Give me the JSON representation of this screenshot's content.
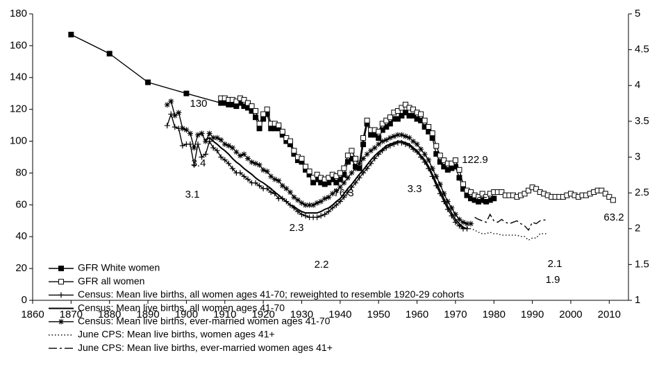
{
  "chart_data": {
    "type": "line",
    "xlim": [
      1860,
      2015
    ],
    "xticks": [
      1860,
      1870,
      1880,
      1890,
      1900,
      1910,
      1920,
      1930,
      1940,
      1950,
      1960,
      1970,
      1980,
      1990,
      2000,
      2010
    ],
    "ylim": [
      0,
      180
    ],
    "yticks": [
      0,
      20,
      40,
      60,
      80,
      100,
      120,
      140,
      160,
      180
    ],
    "y2lim": [
      1,
      5
    ],
    "y2ticks": [
      1,
      1.5,
      2,
      2.5,
      3,
      3.5,
      4,
      4.5,
      5
    ],
    "legend": "lower left",
    "annotations": [
      "130",
      "3.4",
      "3.1",
      "76.3",
      "2.3",
      "2.2",
      "122.9",
      "3.3",
      "65",
      "63.2",
      "2.1",
      "1.9"
    ],
    "series": [
      {
        "name": "GFR White women",
        "color": "#000000",
        "marker": "square-filled",
        "dash": "solid",
        "x": [
          1870,
          1880,
          1890,
          1900,
          1909,
          1910,
          1911,
          1912,
          1913,
          1914,
          1915,
          1916,
          1917,
          1918,
          1919,
          1920,
          1921,
          1922,
          1923,
          1924,
          1925,
          1926,
          1927,
          1928,
          1929,
          1930,
          1931,
          1932,
          1933,
          1934,
          1935,
          1936,
          1937,
          1938,
          1939,
          1940,
          1941,
          1942,
          1943,
          1944,
          1945,
          1946,
          1947,
          1948,
          1949,
          1950,
          1951,
          1952,
          1953,
          1954,
          1955,
          1956,
          1957,
          1958,
          1959,
          1960,
          1961,
          1962,
          1963,
          1964,
          1965,
          1966,
          1967,
          1968,
          1969,
          1970,
          1971,
          1972,
          1973,
          1974,
          1975,
          1976,
          1977,
          1978,
          1979,
          1980
        ],
        "values": [
          167,
          155,
          137,
          130,
          124,
          124,
          123,
          123,
          122,
          124,
          122,
          121,
          119,
          115,
          108,
          114,
          117,
          108,
          108,
          108,
          104,
          100,
          98,
          92,
          88,
          87,
          82,
          79,
          74,
          76,
          74,
          73,
          74,
          76,
          74,
          76,
          79,
          87,
          89,
          84,
          83,
          98,
          111,
          104,
          104,
          102,
          107,
          109,
          111,
          114,
          114,
          116,
          118,
          116,
          116,
          114,
          113,
          109,
          106,
          102,
          92,
          87,
          84,
          82,
          83,
          84,
          77,
          70,
          66,
          64,
          63,
          62,
          63,
          62,
          63,
          64
        ]
      },
      {
        "name": "GFR all women",
        "color": "#000000",
        "marker": "square-open",
        "dash": "solid",
        "x": [
          1909,
          1910,
          1911,
          1912,
          1913,
          1914,
          1915,
          1916,
          1917,
          1918,
          1919,
          1920,
          1921,
          1922,
          1923,
          1924,
          1925,
          1926,
          1927,
          1928,
          1929,
          1930,
          1931,
          1932,
          1933,
          1934,
          1935,
          1936,
          1937,
          1938,
          1939,
          1940,
          1941,
          1942,
          1943,
          1944,
          1945,
          1946,
          1947,
          1948,
          1949,
          1950,
          1951,
          1952,
          1953,
          1954,
          1955,
          1956,
          1957,
          1958,
          1959,
          1960,
          1961,
          1962,
          1963,
          1964,
          1965,
          1966,
          1967,
          1968,
          1969,
          1970,
          1971,
          1972,
          1973,
          1974,
          1975,
          1976,
          1977,
          1978,
          1979,
          1980,
          1981,
          1982,
          1983,
          1984,
          1985,
          1986,
          1987,
          1988,
          1989,
          1990,
          1991,
          1992,
          1993,
          1994,
          1995,
          1996,
          1997,
          1998,
          1999,
          2000,
          2001,
          2002,
          2003,
          2004,
          2005,
          2006,
          2007,
          2008,
          2009,
          2010,
          2011
        ],
        "values": [
          127,
          127,
          126,
          126,
          125,
          127,
          126,
          124,
          122,
          119,
          111,
          117,
          120,
          111,
          111,
          110,
          106,
          102,
          100,
          94,
          90,
          89,
          84,
          81,
          77,
          79,
          77,
          76,
          77,
          79,
          78,
          80,
          83,
          91,
          94,
          89,
          86,
          102,
          113,
          107,
          107,
          106,
          111,
          113,
          115,
          118,
          119,
          121,
          123,
          121,
          120,
          118,
          117,
          113,
          109,
          105,
          97,
          91,
          88,
          86,
          86,
          88,
          82,
          73,
          69,
          68,
          66,
          65,
          67,
          65,
          67,
          68,
          68,
          68,
          66,
          66,
          66,
          65,
          66,
          67,
          69,
          71,
          70,
          68,
          67,
          66,
          65,
          65,
          65,
          65,
          66,
          67,
          66,
          65,
          66,
          66,
          67,
          68,
          69,
          69,
          67,
          65,
          63
        ]
      },
      {
        "name": "Census: Mean live births, all women ages 41-70; reweighted to resemble 1920-29 cohorts",
        "color": "#000000",
        "marker": "plus",
        "dash": "solid",
        "axis": "y2",
        "x": [
          1895,
          1896,
          1897,
          1898,
          1899,
          1900,
          1901,
          1902,
          1903,
          1904,
          1905,
          1906,
          1907,
          1908,
          1909,
          1910,
          1911,
          1912,
          1913,
          1914,
          1915,
          1916,
          1917,
          1918,
          1919,
          1920,
          1921,
          1922,
          1923,
          1924,
          1925,
          1926,
          1927,
          1928,
          1929,
          1930,
          1931,
          1932,
          1933,
          1934,
          1935,
          1936,
          1937,
          1938,
          1939,
          1940,
          1941,
          1942,
          1943,
          1944,
          1945,
          1946,
          1947,
          1948,
          1949,
          1950,
          1951,
          1952,
          1953,
          1954,
          1955,
          1956,
          1957,
          1958,
          1959,
          1960,
          1961,
          1962,
          1963,
          1964,
          1965,
          1966,
          1967,
          1968,
          1969,
          1970,
          1971,
          1972,
          1973
        ],
        "values": [
          3.44,
          3.6,
          3.42,
          3.4,
          3.16,
          3.18,
          3.18,
          2.89,
          3.18,
          3,
          3.04,
          3.22,
          3.13,
          3.09,
          3,
          2.96,
          2.91,
          2.84,
          2.78,
          2.78,
          2.73,
          2.69,
          2.64,
          2.64,
          2.6,
          2.56,
          2.56,
          2.51,
          2.49,
          2.42,
          2.42,
          2.38,
          2.33,
          2.29,
          2.24,
          2.2,
          2.18,
          2.16,
          2.16,
          2.16,
          2.18,
          2.2,
          2.24,
          2.29,
          2.33,
          2.38,
          2.44,
          2.51,
          2.58,
          2.64,
          2.71,
          2.78,
          2.84,
          2.91,
          2.98,
          3.04,
          3.09,
          3.13,
          3.16,
          3.18,
          3.2,
          3.2,
          3.18,
          3.16,
          3.11,
          3.07,
          3,
          2.93,
          2.84,
          2.73,
          2.6,
          2.49,
          2.38,
          2.27,
          2.18,
          2.09,
          2.04,
          2,
          2
        ]
      },
      {
        "name": "Census: Mean live births, all women ages 41-70",
        "color": "#000000",
        "marker": "none",
        "dash": "solid",
        "axis": "y2",
        "x": [
          1905,
          1906,
          1907,
          1908,
          1909,
          1910,
          1911,
          1912,
          1913,
          1914,
          1915,
          1916,
          1917,
          1918,
          1919,
          1920,
          1921,
          1922,
          1923,
          1924,
          1925,
          1926,
          1927,
          1928,
          1929,
          1930,
          1931,
          1932,
          1933,
          1934,
          1935,
          1936,
          1937,
          1938,
          1939,
          1940,
          1941,
          1942,
          1943,
          1944,
          1945,
          1946,
          1947,
          1948,
          1949,
          1950,
          1951,
          1952,
          1953,
          1954,
          1955,
          1956,
          1957,
          1958,
          1959,
          1960,
          1961,
          1962,
          1963,
          1964,
          1965,
          1966,
          1967,
          1968,
          1969,
          1970,
          1971,
          1972,
          1973
        ],
        "values": [
          3.24,
          3.27,
          3.22,
          3.18,
          3.13,
          3.09,
          3.04,
          2.98,
          2.93,
          2.89,
          2.84,
          2.8,
          2.76,
          2.71,
          2.67,
          2.64,
          2.6,
          2.56,
          2.51,
          2.47,
          2.42,
          2.38,
          2.33,
          2.31,
          2.27,
          2.24,
          2.22,
          2.22,
          2.22,
          2.22,
          2.24,
          2.27,
          2.29,
          2.33,
          2.38,
          2.42,
          2.49,
          2.56,
          2.62,
          2.69,
          2.76,
          2.82,
          2.89,
          2.96,
          3.02,
          3.07,
          3.11,
          3.16,
          3.18,
          3.2,
          3.22,
          3.22,
          3.2,
          3.18,
          3.13,
          3.09,
          3.02,
          2.96,
          2.87,
          2.76,
          2.64,
          2.53,
          2.42,
          2.31,
          2.22,
          2.13,
          2.07,
          2.02,
          2
        ]
      },
      {
        "name": "Census: Mean live births, ever-married women ages 41-70",
        "color": "#000000",
        "marker": "star",
        "dash": "solid",
        "axis": "y2",
        "x": [
          1895,
          1896,
          1897,
          1898,
          1899,
          1900,
          1901,
          1902,
          1903,
          1904,
          1905,
          1906,
          1907,
          1908,
          1909,
          1910,
          1911,
          1912,
          1913,
          1914,
          1915,
          1916,
          1917,
          1918,
          1919,
          1920,
          1921,
          1922,
          1923,
          1924,
          1925,
          1926,
          1927,
          1928,
          1929,
          1930,
          1931,
          1932,
          1933,
          1934,
          1935,
          1936,
          1937,
          1938,
          1939,
          1940,
          1941,
          1942,
          1943,
          1944,
          1945,
          1946,
          1947,
          1948,
          1949,
          1950,
          1951,
          1952,
          1953,
          1954,
          1955,
          1956,
          1957,
          1958,
          1959,
          1960,
          1961,
          1962,
          1963,
          1964,
          1965,
          1966,
          1967,
          1968,
          1969,
          1970,
          1971,
          1972,
          1973,
          1974
        ],
        "values": [
          3.73,
          3.78,
          3.58,
          3.62,
          3.4,
          3.38,
          3.33,
          3.13,
          3.31,
          3.33,
          3.22,
          3.33,
          3.27,
          3.27,
          3.24,
          3.18,
          3.16,
          3.13,
          3.07,
          3.02,
          3.04,
          2.98,
          2.93,
          2.91,
          2.89,
          2.82,
          2.8,
          2.73,
          2.69,
          2.67,
          2.6,
          2.56,
          2.51,
          2.44,
          2.4,
          2.36,
          2.33,
          2.33,
          2.33,
          2.36,
          2.38,
          2.42,
          2.44,
          2.49,
          2.53,
          2.58,
          2.64,
          2.71,
          2.78,
          2.84,
          2.91,
          2.98,
          3.04,
          3.09,
          3.13,
          3.18,
          3.22,
          3.24,
          3.27,
          3.29,
          3.31,
          3.31,
          3.29,
          3.27,
          3.22,
          3.18,
          3.11,
          3.04,
          2.96,
          2.84,
          2.73,
          2.62,
          2.49,
          2.38,
          2.29,
          2.2,
          2.13,
          2.09,
          2.07,
          2.07
        ]
      },
      {
        "name": "June CPS: Mean live births, women ages 41+",
        "color": "#000000",
        "marker": "none",
        "dash": "dotted",
        "axis": "y2",
        "x": [
          1973,
          1975,
          1976,
          1977,
          1978,
          1979,
          1980,
          1981,
          1982,
          1983,
          1984,
          1985,
          1986,
          1987,
          1988,
          1989,
          1990,
          1991,
          1992,
          1994
        ],
        "values": [
          2.02,
          1.98,
          1.95,
          1.93,
          1.93,
          1.95,
          1.93,
          1.93,
          1.91,
          1.91,
          1.91,
          1.91,
          1.91,
          1.89,
          1.89,
          1.84,
          1.87,
          1.87,
          1.93,
          1.93
        ]
      },
      {
        "name": "June CPS: Mean live births, ever-married women ages 41+",
        "color": "#000000",
        "marker": "none",
        "dash": "dashdot",
        "axis": "y2",
        "x": [
          1975,
          1976,
          1977,
          1978,
          1979,
          1980,
          1981,
          1982,
          1983,
          1984,
          1985,
          1986,
          1987,
          1988,
          1989,
          1990,
          1991,
          1992,
          1994
        ],
        "values": [
          2.16,
          2.13,
          2.11,
          2.09,
          2.2,
          2.11,
          2.09,
          2.13,
          2.09,
          2.07,
          2.09,
          2.11,
          2.07,
          2.04,
          1.98,
          2.09,
          2.07,
          2.11,
          2.13
        ]
      }
    ]
  }
}
